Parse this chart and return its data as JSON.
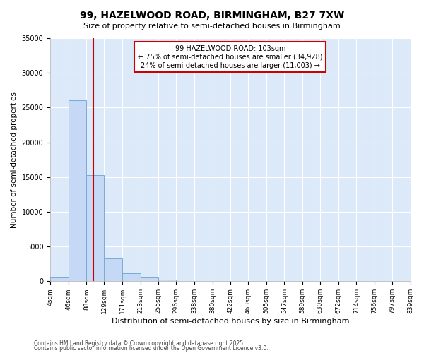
{
  "title": "99, HAZELWOOD ROAD, BIRMINGHAM, B27 7XW",
  "subtitle": "Size of property relative to semi-detached houses in Birmingham",
  "xlabel": "Distribution of semi-detached houses by size in Birmingham",
  "ylabel": "Number of semi-detached properties",
  "bin_edges": [
    4,
    46,
    88,
    129,
    171,
    213,
    255,
    296,
    338,
    380,
    422,
    463,
    505,
    547,
    589,
    630,
    672,
    714,
    756,
    797,
    839
  ],
  "bar_heights": [
    500,
    26100,
    15300,
    3300,
    1200,
    580,
    200,
    0,
    0,
    0,
    0,
    0,
    0,
    0,
    0,
    0,
    0,
    0,
    0,
    0
  ],
  "bar_color": "#c5d8f5",
  "bar_edge_color": "#7aaad4",
  "axes_background": "#dce9f9",
  "figure_background": "#ffffff",
  "grid_color": "#ffffff",
  "red_line_x": 103,
  "annotation_title": "99 HAZELWOOD ROAD: 103sqm",
  "annotation_line1": "← 75% of semi-detached houses are smaller (34,928)",
  "annotation_line2": "24% of semi-detached houses are larger (11,003) →",
  "annotation_box_color": "#ffffff",
  "annotation_border_color": "#cc0000",
  "red_line_color": "#cc0000",
  "ylim": [
    0,
    35000
  ],
  "yticks": [
    0,
    5000,
    10000,
    15000,
    20000,
    25000,
    30000,
    35000
  ],
  "tick_labels": [
    "4sqm",
    "46sqm",
    "88sqm",
    "129sqm",
    "171sqm",
    "213sqm",
    "255sqm",
    "296sqm",
    "338sqm",
    "380sqm",
    "422sqm",
    "463sqm",
    "505sqm",
    "547sqm",
    "589sqm",
    "630sqm",
    "672sqm",
    "714sqm",
    "756sqm",
    "797sqm",
    "839sqm"
  ],
  "footnote1": "Contains HM Land Registry data © Crown copyright and database right 2025.",
  "footnote2": "Contains public sector information licensed under the Open Government Licence v3.0."
}
